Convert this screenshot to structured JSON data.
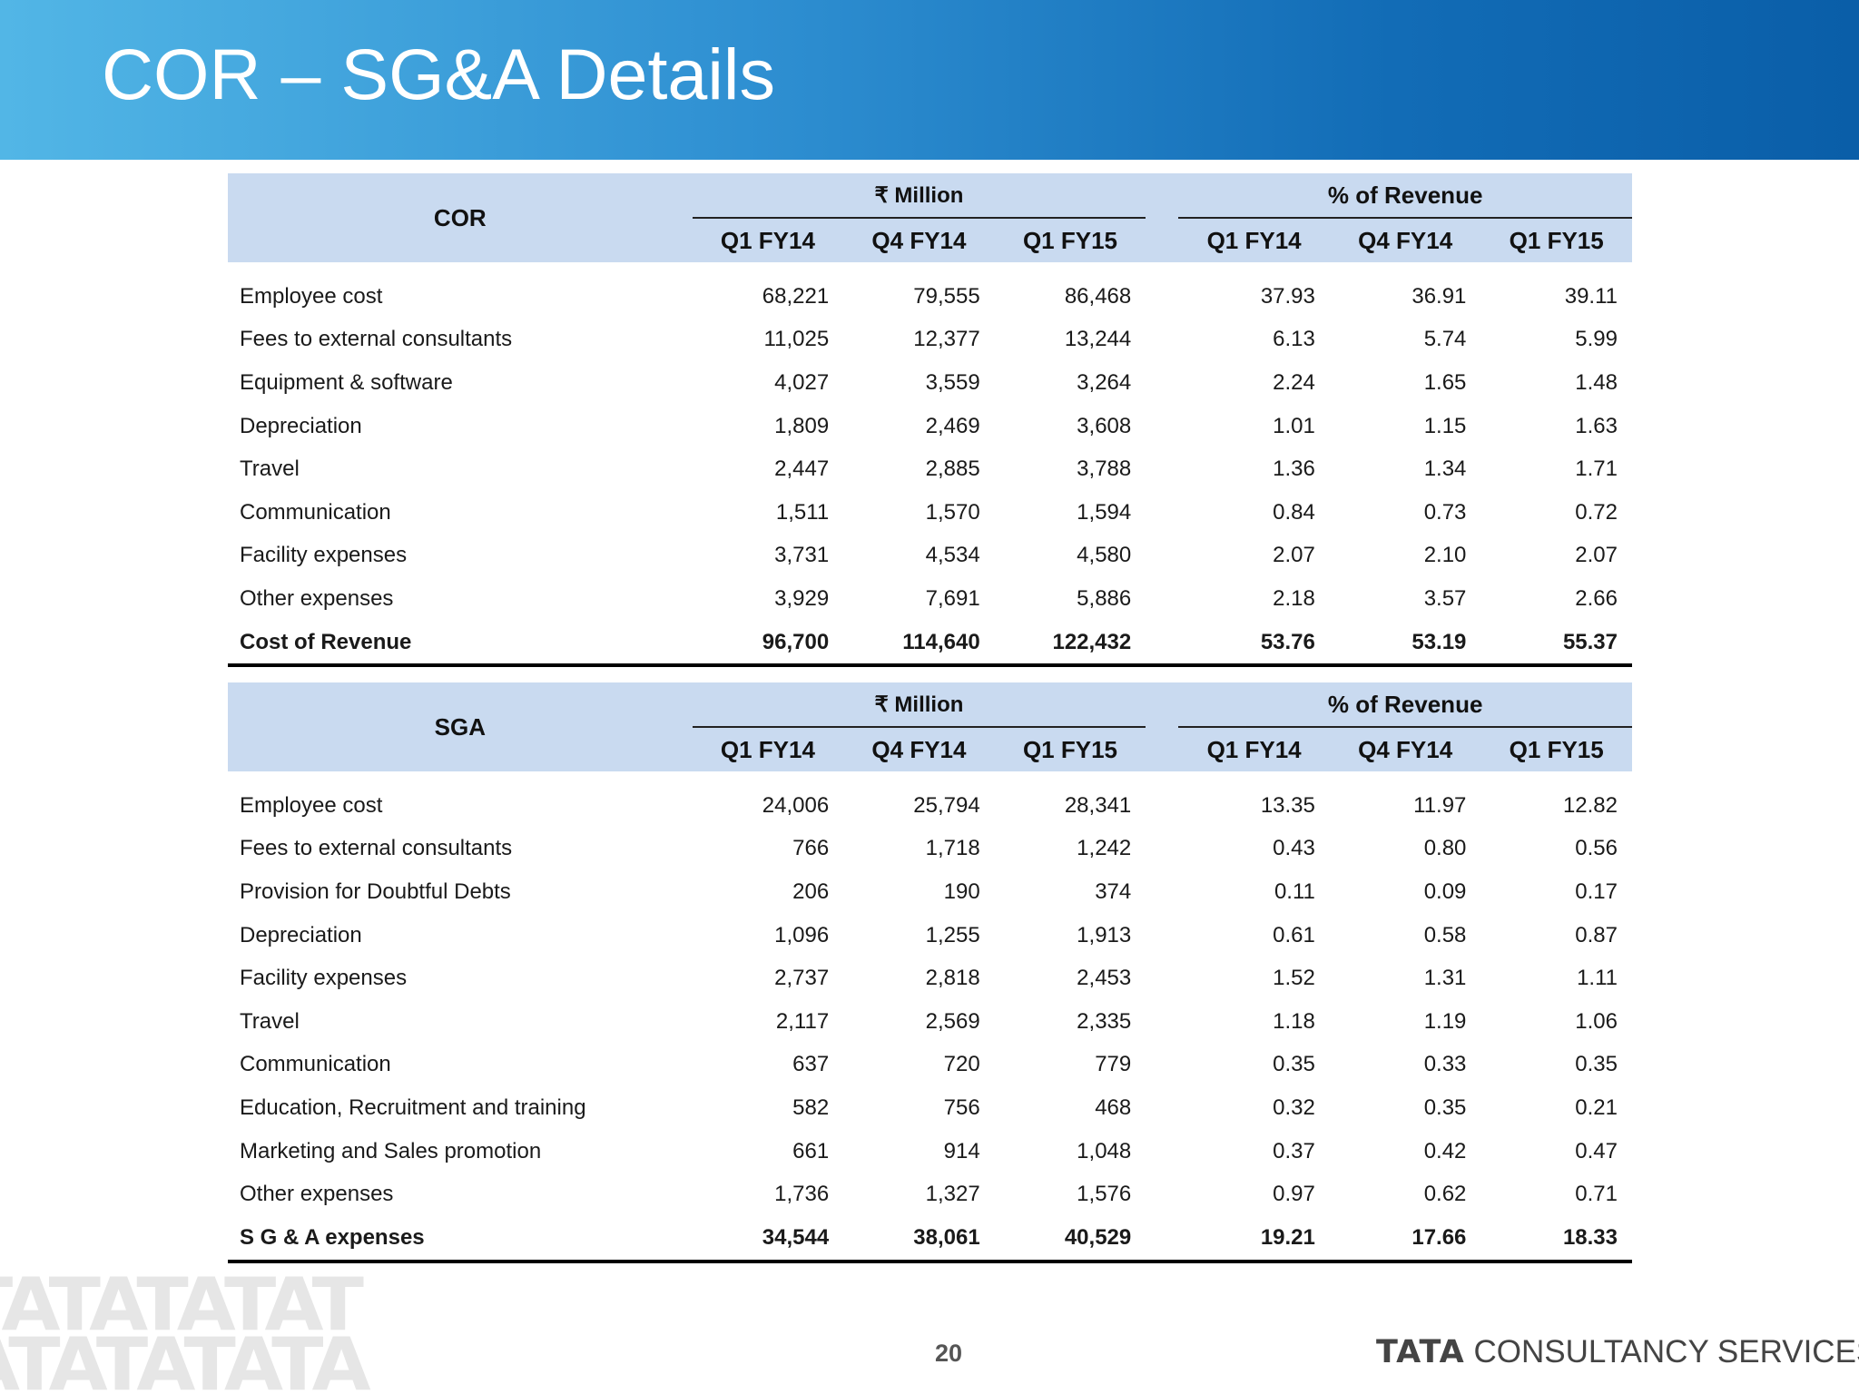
{
  "title": "COR – SG&A Details",
  "cor": {
    "section_label": "COR",
    "group_million": "₹ Million",
    "group_percent": "% of Revenue",
    "columns": [
      "Q1 FY14",
      "Q4 FY14",
      "Q1 FY15",
      "Q1 FY14",
      "Q4 FY14",
      "Q1 FY15"
    ],
    "rows": [
      {
        "label": "Employee cost",
        "values": [
          "68,221",
          "79,555",
          "86,468",
          "37.93",
          "36.91",
          "39.11"
        ]
      },
      {
        "label": "Fees to external consultants",
        "values": [
          "11,025",
          "12,377",
          "13,244",
          "6.13",
          "5.74",
          "5.99"
        ]
      },
      {
        "label": "Equipment & software",
        "values": [
          "4,027",
          "3,559",
          "3,264",
          "2.24",
          "1.65",
          "1.48"
        ]
      },
      {
        "label": "Depreciation",
        "values": [
          "1,809",
          "2,469",
          "3,608",
          "1.01",
          "1.15",
          "1.63"
        ]
      },
      {
        "label": "Travel",
        "values": [
          "2,447",
          "2,885",
          "3,788",
          "1.36",
          "1.34",
          "1.71"
        ]
      },
      {
        "label": "Communication",
        "values": [
          "1,511",
          "1,570",
          "1,594",
          "0.84",
          "0.73",
          "0.72"
        ]
      },
      {
        "label": "Facility expenses",
        "values": [
          "3,731",
          "4,534",
          "4,580",
          "2.07",
          "2.10",
          "2.07"
        ]
      },
      {
        "label": "Other expenses",
        "values": [
          "3,929",
          "7,691",
          "5,886",
          "2.18",
          "3.57",
          "2.66"
        ]
      }
    ],
    "total": {
      "label": "Cost of Revenue",
      "values": [
        "96,700",
        "114,640",
        "122,432",
        "53.76",
        "53.19",
        "55.37"
      ]
    }
  },
  "sga": {
    "section_label": "SGA",
    "group_million": "₹ Million",
    "group_percent": "% of Revenue",
    "columns": [
      "Q1 FY14",
      "Q4 FY14",
      "Q1 FY15",
      "Q1 FY14",
      "Q4 FY14",
      "Q1 FY15"
    ],
    "rows": [
      {
        "label": "Employee cost",
        "values": [
          "24,006",
          "25,794",
          "28,341",
          "13.35",
          "11.97",
          "12.82"
        ]
      },
      {
        "label": "Fees to external consultants",
        "values": [
          "766",
          "1,718",
          "1,242",
          "0.43",
          "0.80",
          "0.56"
        ]
      },
      {
        "label": "Provision for Doubtful Debts",
        "values": [
          "206",
          "190",
          "374",
          "0.11",
          "0.09",
          "0.17"
        ]
      },
      {
        "label": "Depreciation",
        "values": [
          "1,096",
          "1,255",
          "1,913",
          "0.61",
          "0.58",
          "0.87"
        ]
      },
      {
        "label": "Facility expenses",
        "values": [
          "2,737",
          "2,818",
          "2,453",
          "1.52",
          "1.31",
          "1.11"
        ]
      },
      {
        "label": "Travel",
        "values": [
          "2,117",
          "2,569",
          "2,335",
          "1.18",
          "1.19",
          "1.06"
        ]
      },
      {
        "label": "Communication",
        "values": [
          "637",
          "720",
          "779",
          "0.35",
          "0.33",
          "0.35"
        ]
      },
      {
        "label": "Education, Recruitment and training",
        "values": [
          "582",
          "756",
          "468",
          "0.32",
          "0.35",
          "0.21"
        ]
      },
      {
        "label": "Marketing and Sales promotion",
        "values": [
          "661",
          "914",
          "1,048",
          "0.37",
          "0.42",
          "0.47"
        ]
      },
      {
        "label": "Other expenses",
        "values": [
          "1,736",
          "1,327",
          "1,576",
          "0.97",
          "0.62",
          "0.71"
        ]
      }
    ],
    "total": {
      "label": "S G & A expenses",
      "values": [
        "34,544",
        "38,061",
        "40,529",
        "19.21",
        "17.66",
        "18.33"
      ]
    }
  },
  "footer": {
    "page_number": "20",
    "brand_strong": "TATA",
    "brand_rest": "CONSULTANCY SERVICES",
    "watermark_line1": "TATATATAT",
    "watermark_line2": "ATATATATA"
  },
  "colors": {
    "header_gradient_start": "#52b6e6",
    "header_gradient_end": "#0a5ea8",
    "table_header_bg": "#c9daf0",
    "title_text": "#ffffff"
  }
}
